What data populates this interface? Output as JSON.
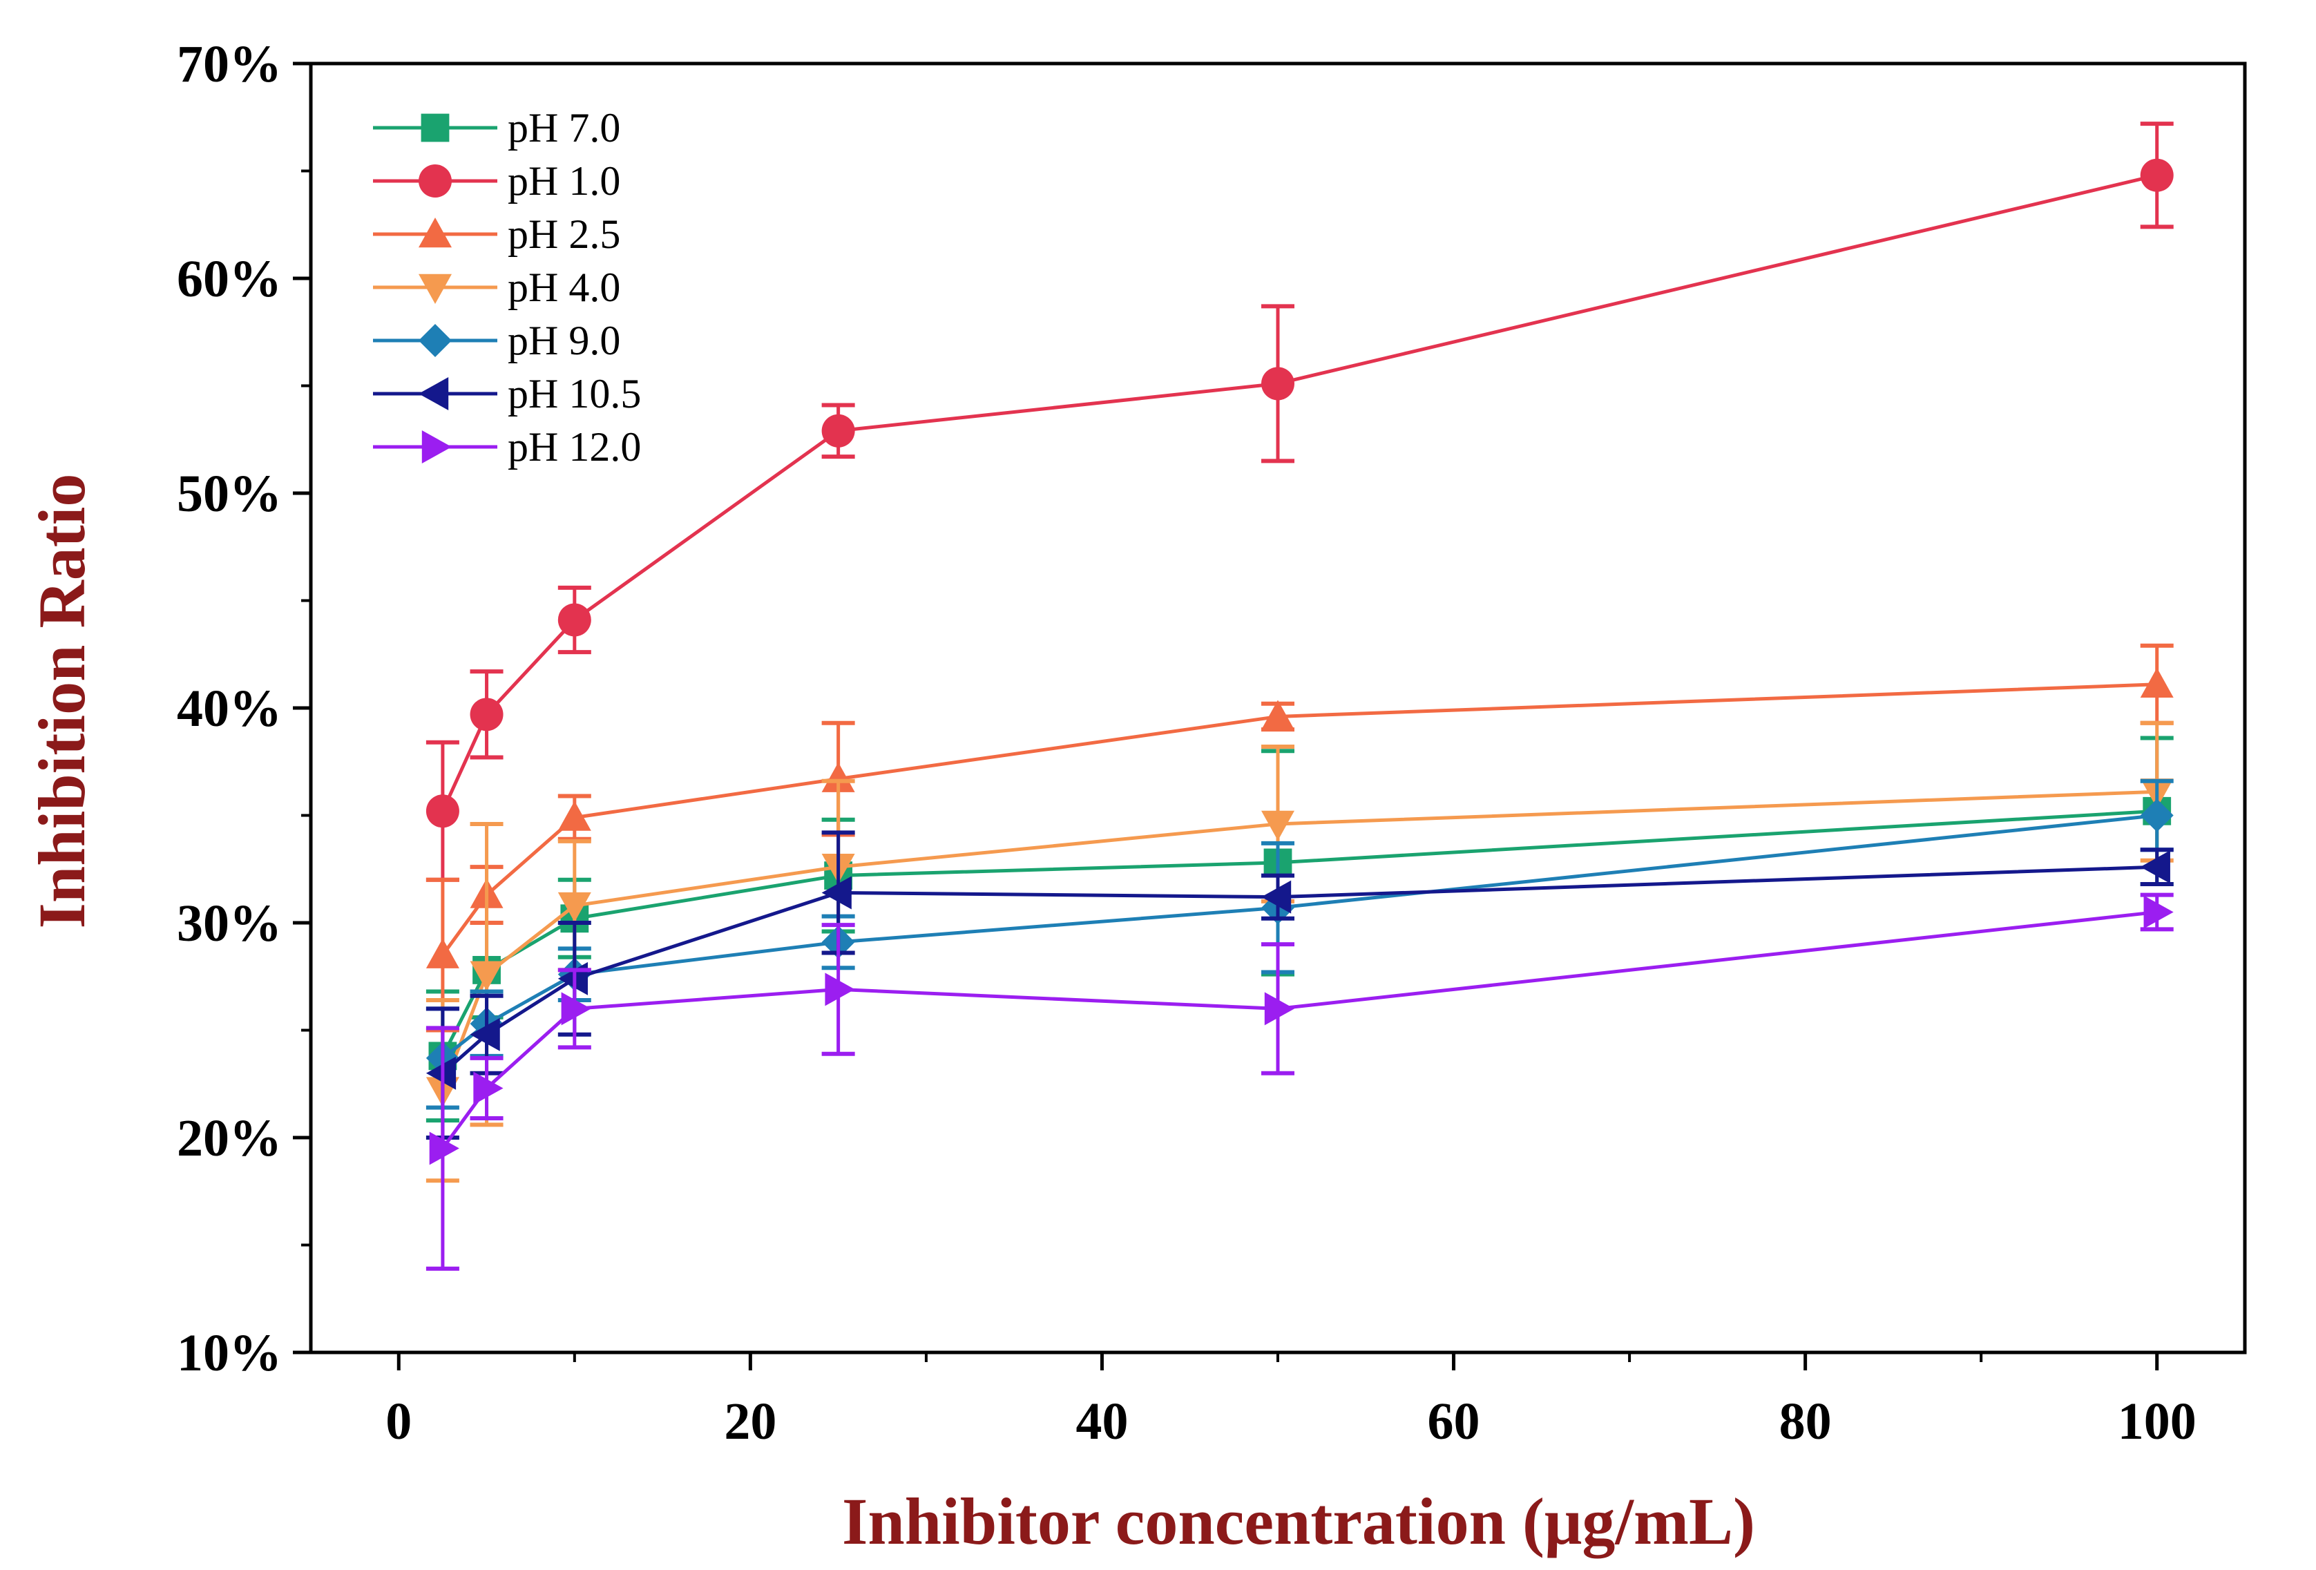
{
  "chart_data": {
    "type": "line",
    "title": "",
    "xlabel": "Inhibitor concentration (μg/mL)",
    "ylabel": "Inhibition Ratio",
    "xlim": [
      -5,
      105
    ],
    "ylim": [
      10,
      70
    ],
    "x_ticks": [
      0,
      20,
      40,
      60,
      80,
      100
    ],
    "x_tick_labels": [
      "0",
      "20",
      "40",
      "60",
      "80",
      "100"
    ],
    "y_ticks": [
      10,
      20,
      30,
      40,
      50,
      60,
      70
    ],
    "y_tick_labels": [
      "10%",
      "20%",
      "30%",
      "40%",
      "50%",
      "60%",
      "70%"
    ],
    "grid": false,
    "legend_position": "top-left",
    "x": [
      2.5,
      5,
      10,
      25,
      50,
      100
    ],
    "series": [
      {
        "name": "pH 7.0",
        "color": "#1aa36f",
        "marker": "square",
        "values": [
          23.8,
          27.8,
          30.2,
          32.2,
          32.8,
          35.2
        ],
        "errors": [
          3.0,
          2.2,
          1.8,
          2.6,
          5.2,
          3.4
        ]
      },
      {
        "name": "pH 1.0",
        "color": "#e3334f",
        "marker": "circle",
        "values": [
          35.2,
          39.7,
          44.1,
          52.9,
          55.1,
          64.8
        ],
        "errors": [
          3.2,
          2.0,
          1.5,
          1.2,
          3.6,
          2.4
        ]
      },
      {
        "name": "pH 2.5",
        "color": "#f26a43",
        "marker": "triangle-up",
        "values": [
          28.5,
          31.3,
          34.9,
          36.7,
          39.6,
          41.1
        ],
        "errors": [
          3.5,
          1.3,
          1.0,
          2.6,
          0.6,
          1.8
        ]
      },
      {
        "name": "pH 4.0",
        "color": "#f59a4f",
        "marker": "triangle-down",
        "values": [
          22.2,
          27.6,
          30.8,
          32.6,
          34.6,
          36.1
        ],
        "errors": [
          4.2,
          7.0,
          3.0,
          4.0,
          3.6,
          3.2
        ]
      },
      {
        "name": "pH 9.0",
        "color": "#1e7fb5",
        "marker": "diamond",
        "values": [
          23.7,
          25.3,
          27.6,
          29.1,
          30.7,
          35.0
        ],
        "errors": [
          2.3,
          1.5,
          1.2,
          1.2,
          3.0,
          1.6
        ]
      },
      {
        "name": "pH 10.5",
        "color": "#14188c",
        "marker": "triangle-left",
        "values": [
          23.0,
          24.8,
          27.4,
          31.4,
          31.2,
          32.6
        ],
        "errors": [
          3.0,
          1.8,
          2.6,
          2.8,
          1.0,
          0.8
        ]
      },
      {
        "name": "pH 12.0",
        "color": "#9b1ef0",
        "marker": "triangle-right",
        "values": [
          19.5,
          22.3,
          26.0,
          26.9,
          26.0,
          30.5
        ],
        "errors": [
          5.6,
          1.4,
          1.8,
          3.0,
          3.0,
          0.8
        ]
      }
    ]
  }
}
